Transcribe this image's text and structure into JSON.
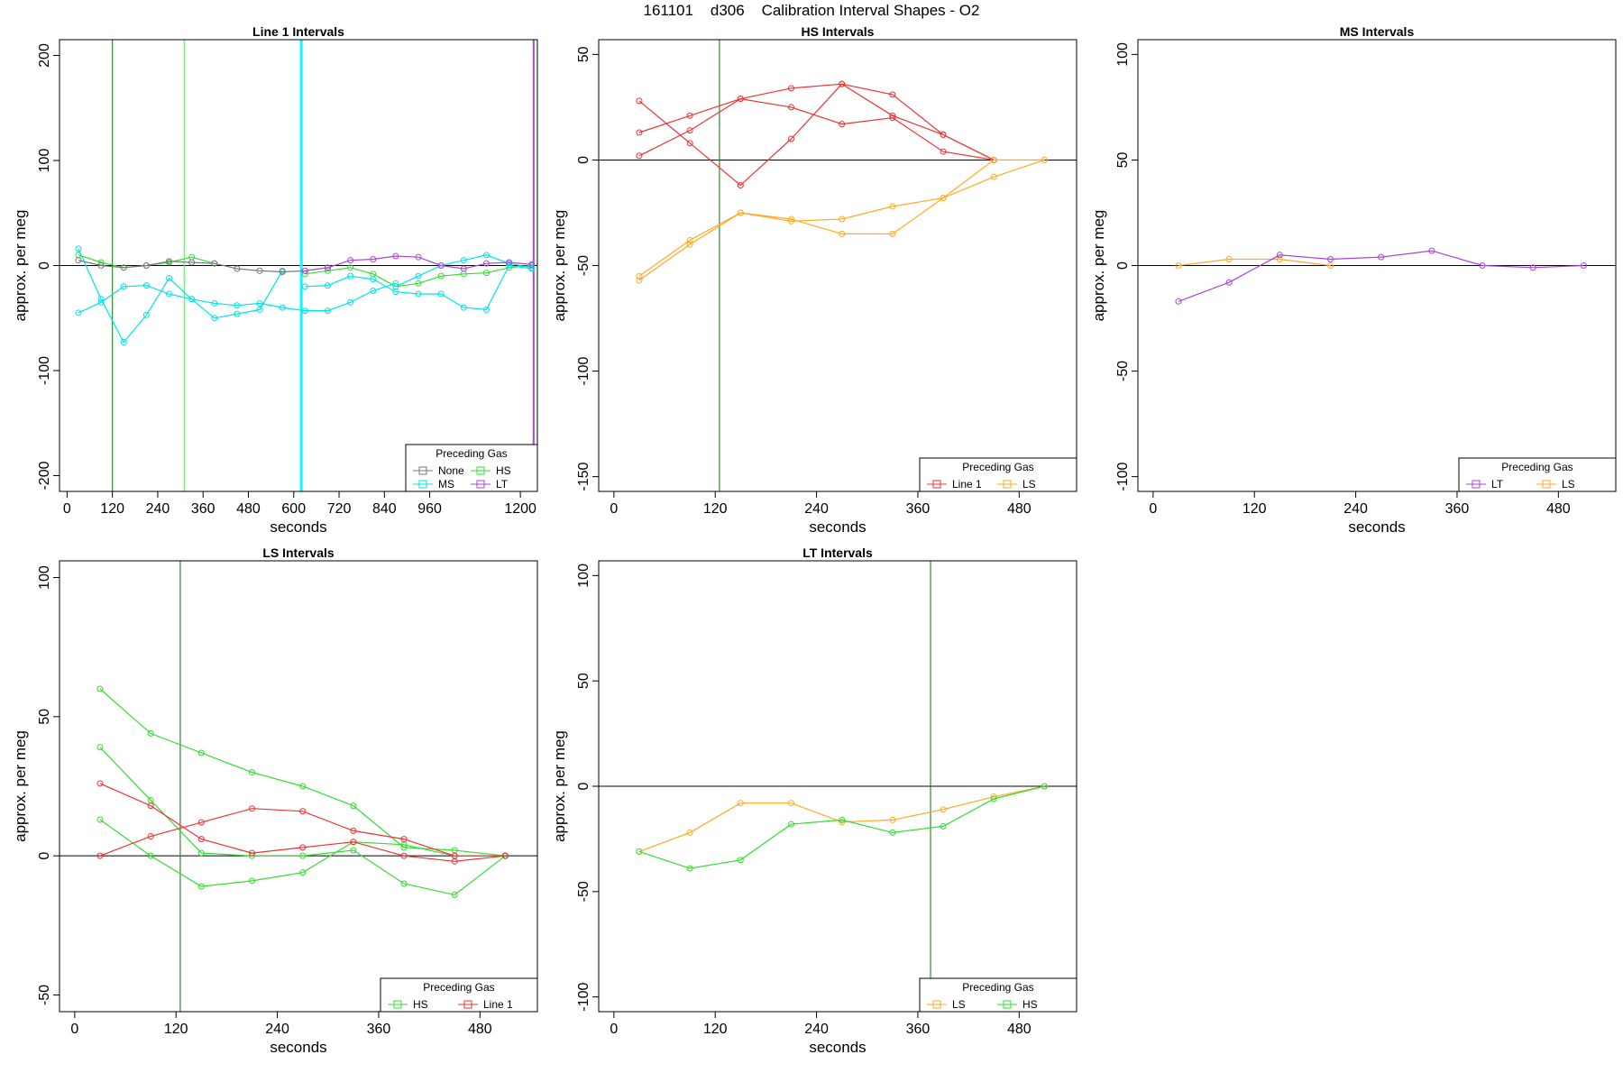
{
  "page": {
    "title": "161101    d306    Calibration Interval Shapes - O2"
  },
  "chart_data": [
    {
      "type": "line",
      "title": "Line 1 Intervals",
      "xlabel": "seconds",
      "ylabel": "approx. per meg",
      "xlim": [
        -20,
        1245
      ],
      "ylim": [
        -215,
        215
      ],
      "xticks": [
        0,
        120,
        240,
        360,
        480,
        600,
        720,
        840,
        960,
        1200
      ],
      "yticks": [
        -200,
        -100,
        0,
        100,
        200
      ],
      "vlines": [
        {
          "x": 120,
          "color": "#2e8b2e",
          "width": 1.2
        },
        {
          "x": 310,
          "color": "#66ee66",
          "width": 1.2
        },
        {
          "x": 620,
          "color": "#00ffff",
          "width": 3
        },
        {
          "x": 1235,
          "color": "#aa44dd",
          "width": 2
        }
      ],
      "legend": {
        "title": "Preceding Gas",
        "position": "bottom-right",
        "columns": 2,
        "entries": [
          {
            "label": "None",
            "color": "#777777"
          },
          {
            "label": "HS",
            "color": "#33dd33"
          },
          {
            "label": "MS",
            "color": "#00e5e5"
          },
          {
            "label": "LT",
            "color": "#aa44dd"
          }
        ]
      },
      "series": [
        {
          "color": "#33dd33",
          "x": [
            30,
            90,
            150,
            210,
            270,
            330,
            390
          ],
          "y": [
            10,
            3,
            -2,
            0,
            3,
            8,
            2
          ]
        },
        {
          "color": "#33dd33",
          "x": [
            630,
            690,
            750,
            810,
            870,
            930,
            990,
            1050,
            1110,
            1170,
            1230
          ],
          "y": [
            -8,
            -5,
            -2,
            -8,
            -20,
            -17,
            -10,
            -8,
            -7,
            -2,
            0
          ]
        },
        {
          "color": "#00e5e5",
          "x": [
            30,
            90,
            150,
            210,
            270,
            330,
            390,
            450,
            510,
            570
          ],
          "y": [
            16,
            -32,
            -73,
            -47,
            -12,
            -32,
            -50,
            -46,
            -42,
            -5
          ]
        },
        {
          "color": "#00e5e5",
          "x": [
            30,
            90,
            150,
            210,
            270,
            330,
            390,
            450,
            510,
            570,
            630,
            690,
            750,
            810,
            870
          ],
          "y": [
            -45,
            -35,
            -20,
            -19,
            -27,
            -32,
            -36,
            -38,
            -36,
            -40,
            -43,
            -43,
            -35,
            -24,
            -17
          ]
        },
        {
          "color": "#00e5e5",
          "x": [
            630,
            690,
            750,
            810,
            870,
            930,
            990,
            1050,
            1110,
            1170,
            1230
          ],
          "y": [
            -20,
            -19,
            -10,
            -13,
            -25,
            -27,
            -27,
            -40,
            -42,
            0,
            -3
          ]
        },
        {
          "color": "#00e5e5",
          "x": [
            870,
            930,
            990,
            1050,
            1110,
            1170,
            1230
          ],
          "y": [
            -20,
            -10,
            0,
            5,
            10,
            2,
            -2
          ]
        },
        {
          "color": "#777777",
          "x": [
            30,
            90,
            150,
            210,
            270,
            330,
            390,
            450,
            510,
            570,
            630,
            690
          ],
          "y": [
            5,
            0,
            -2,
            0,
            4,
            3,
            2,
            -3,
            -5,
            -6,
            -5,
            -2
          ]
        },
        {
          "color": "#aa44dd",
          "x": [
            630,
            690,
            750,
            810,
            870,
            930,
            990,
            1050,
            1110,
            1170,
            1230
          ],
          "y": [
            -5,
            -2,
            5,
            6,
            9,
            8,
            0,
            -3,
            2,
            3,
            1
          ]
        }
      ]
    },
    {
      "type": "line",
      "title": "HS Intervals",
      "xlabel": "seconds",
      "ylabel": "approx. per meg",
      "xlim": [
        -18,
        548
      ],
      "ylim": [
        -157,
        57
      ],
      "xticks": [
        0,
        120,
        240,
        360,
        480
      ],
      "yticks": [
        -150,
        -100,
        -50,
        0,
        50
      ],
      "vlines": [
        {
          "x": 125,
          "color": "#2e8b2e",
          "width": 1.2
        }
      ],
      "legend": {
        "title": "Preceding Gas",
        "position": "bottom-right",
        "columns": 2,
        "entries": [
          {
            "label": "Line 1",
            "color": "#ee3333"
          },
          {
            "label": "LS",
            "color": "#ffaa22"
          }
        ]
      },
      "series": [
        {
          "color": "#ee3333",
          "x": [
            30,
            90,
            150,
            210,
            270,
            330,
            390,
            450
          ],
          "y": [
            28,
            8,
            -12,
            10,
            36,
            31,
            12,
            0
          ]
        },
        {
          "color": "#ee3333",
          "x": [
            30,
            90,
            150,
            210,
            270,
            330,
            390,
            450
          ],
          "y": [
            13,
            21,
            29,
            34,
            36,
            21,
            12,
            0
          ]
        },
        {
          "color": "#ee3333",
          "x": [
            30,
            90,
            150,
            210,
            270,
            330,
            390,
            450
          ],
          "y": [
            2,
            14,
            29,
            25,
            17,
            20,
            4,
            0
          ]
        },
        {
          "color": "#ffaa22",
          "x": [
            30,
            90,
            150,
            210,
            270,
            330,
            390,
            450,
            510
          ],
          "y": [
            -55,
            -38,
            -25,
            -28,
            -35,
            -35,
            -18,
            0,
            0
          ]
        },
        {
          "color": "#ffaa22",
          "x": [
            30,
            90,
            150,
            210,
            270,
            330,
            390,
            450,
            510
          ],
          "y": [
            -57,
            -40,
            -25,
            -29,
            -28,
            -22,
            -18,
            -8,
            0
          ]
        }
      ]
    },
    {
      "type": "line",
      "title": "MS Intervals",
      "xlabel": "seconds",
      "ylabel": "approx. per meg",
      "xlim": [
        -18,
        548
      ],
      "ylim": [
        -107,
        107
      ],
      "xticks": [
        0,
        120,
        240,
        360,
        480
      ],
      "yticks": [
        -100,
        -50,
        0,
        50,
        100
      ],
      "vlines": [],
      "legend": {
        "title": "Preceding Gas",
        "position": "bottom-right",
        "columns": 2,
        "entries": [
          {
            "label": "LT",
            "color": "#aa44dd"
          },
          {
            "label": "LS",
            "color": "#ffaa22"
          }
        ]
      },
      "series": [
        {
          "color": "#ffaa22",
          "x": [
            30,
            90,
            150,
            210
          ],
          "y": [
            0,
            3,
            3,
            0
          ]
        },
        {
          "color": "#aa44dd",
          "x": [
            30,
            90,
            150,
            210,
            270,
            330,
            390,
            450,
            510
          ],
          "y": [
            -17,
            -8,
            5,
            3,
            4,
            7,
            0,
            -1,
            0
          ]
        }
      ]
    },
    {
      "type": "line",
      "title": "LS Intervals",
      "xlabel": "seconds",
      "ylabel": "approx. per meg",
      "xlim": [
        -18,
        548
      ],
      "ylim": [
        -56,
        106
      ],
      "xticks": [
        0,
        120,
        240,
        360,
        480
      ],
      "yticks": [
        -50,
        0,
        50,
        100
      ],
      "vlines": [
        {
          "x": 125,
          "color": "#2e8b2e",
          "width": 1.2
        }
      ],
      "legend": {
        "title": "Preceding Gas",
        "position": "bottom-right",
        "columns": 2,
        "entries": [
          {
            "label": "HS",
            "color": "#33dd33"
          },
          {
            "label": "Line 1",
            "color": "#ee3333"
          }
        ]
      },
      "series": [
        {
          "color": "#33dd33",
          "x": [
            30,
            90,
            150,
            210,
            270,
            330,
            390,
            450,
            510
          ],
          "y": [
            60,
            44,
            37,
            30,
            25,
            18,
            3,
            2,
            0
          ]
        },
        {
          "color": "#33dd33",
          "x": [
            30,
            90,
            150,
            210,
            270,
            330,
            390,
            450,
            510
          ],
          "y": [
            39,
            20,
            1,
            0,
            0,
            2,
            -10,
            -14,
            0
          ]
        },
        {
          "color": "#33dd33",
          "x": [
            30,
            90,
            150,
            210,
            270,
            330,
            390,
            450,
            510
          ],
          "y": [
            13,
            0,
            -11,
            -9,
            -6,
            5,
            4,
            0,
            0
          ]
        },
        {
          "color": "#ee3333",
          "x": [
            30,
            90,
            150,
            210,
            270,
            330,
            390,
            450,
            510
          ],
          "y": [
            26,
            18,
            6,
            1,
            3,
            5,
            0,
            -2,
            0
          ]
        },
        {
          "color": "#ee3333",
          "x": [
            30,
            90,
            150,
            210,
            270,
            330,
            390,
            450,
            510
          ],
          "y": [
            0,
            7,
            12,
            17,
            16,
            9,
            6,
            0,
            0
          ]
        }
      ]
    },
    {
      "type": "line",
      "title": "LT Intervals",
      "xlabel": "seconds",
      "ylabel": "approx. per meg",
      "xlim": [
        -18,
        548
      ],
      "ylim": [
        -107,
        107
      ],
      "xticks": [
        0,
        120,
        240,
        360,
        480
      ],
      "yticks": [
        -100,
        -50,
        0,
        50,
        100
      ],
      "vlines": [
        {
          "x": 375,
          "color": "#2e8b2e",
          "width": 1.2
        }
      ],
      "legend": {
        "title": "Preceding Gas",
        "position": "bottom-right",
        "columns": 2,
        "entries": [
          {
            "label": "LS",
            "color": "#ffaa22"
          },
          {
            "label": "HS",
            "color": "#33dd33"
          }
        ]
      },
      "series": [
        {
          "color": "#ffaa22",
          "x": [
            30,
            90,
            150,
            210,
            270,
            330,
            390,
            450,
            510
          ],
          "y": [
            -31,
            -22,
            -8,
            -8,
            -17,
            -16,
            -11,
            -5,
            0
          ]
        },
        {
          "color": "#33dd33",
          "x": [
            30,
            90,
            150,
            210,
            270,
            330,
            390,
            450,
            510
          ],
          "y": [
            -31,
            -39,
            -35,
            -18,
            -16,
            -22,
            -19,
            -6,
            0
          ]
        }
      ]
    }
  ]
}
